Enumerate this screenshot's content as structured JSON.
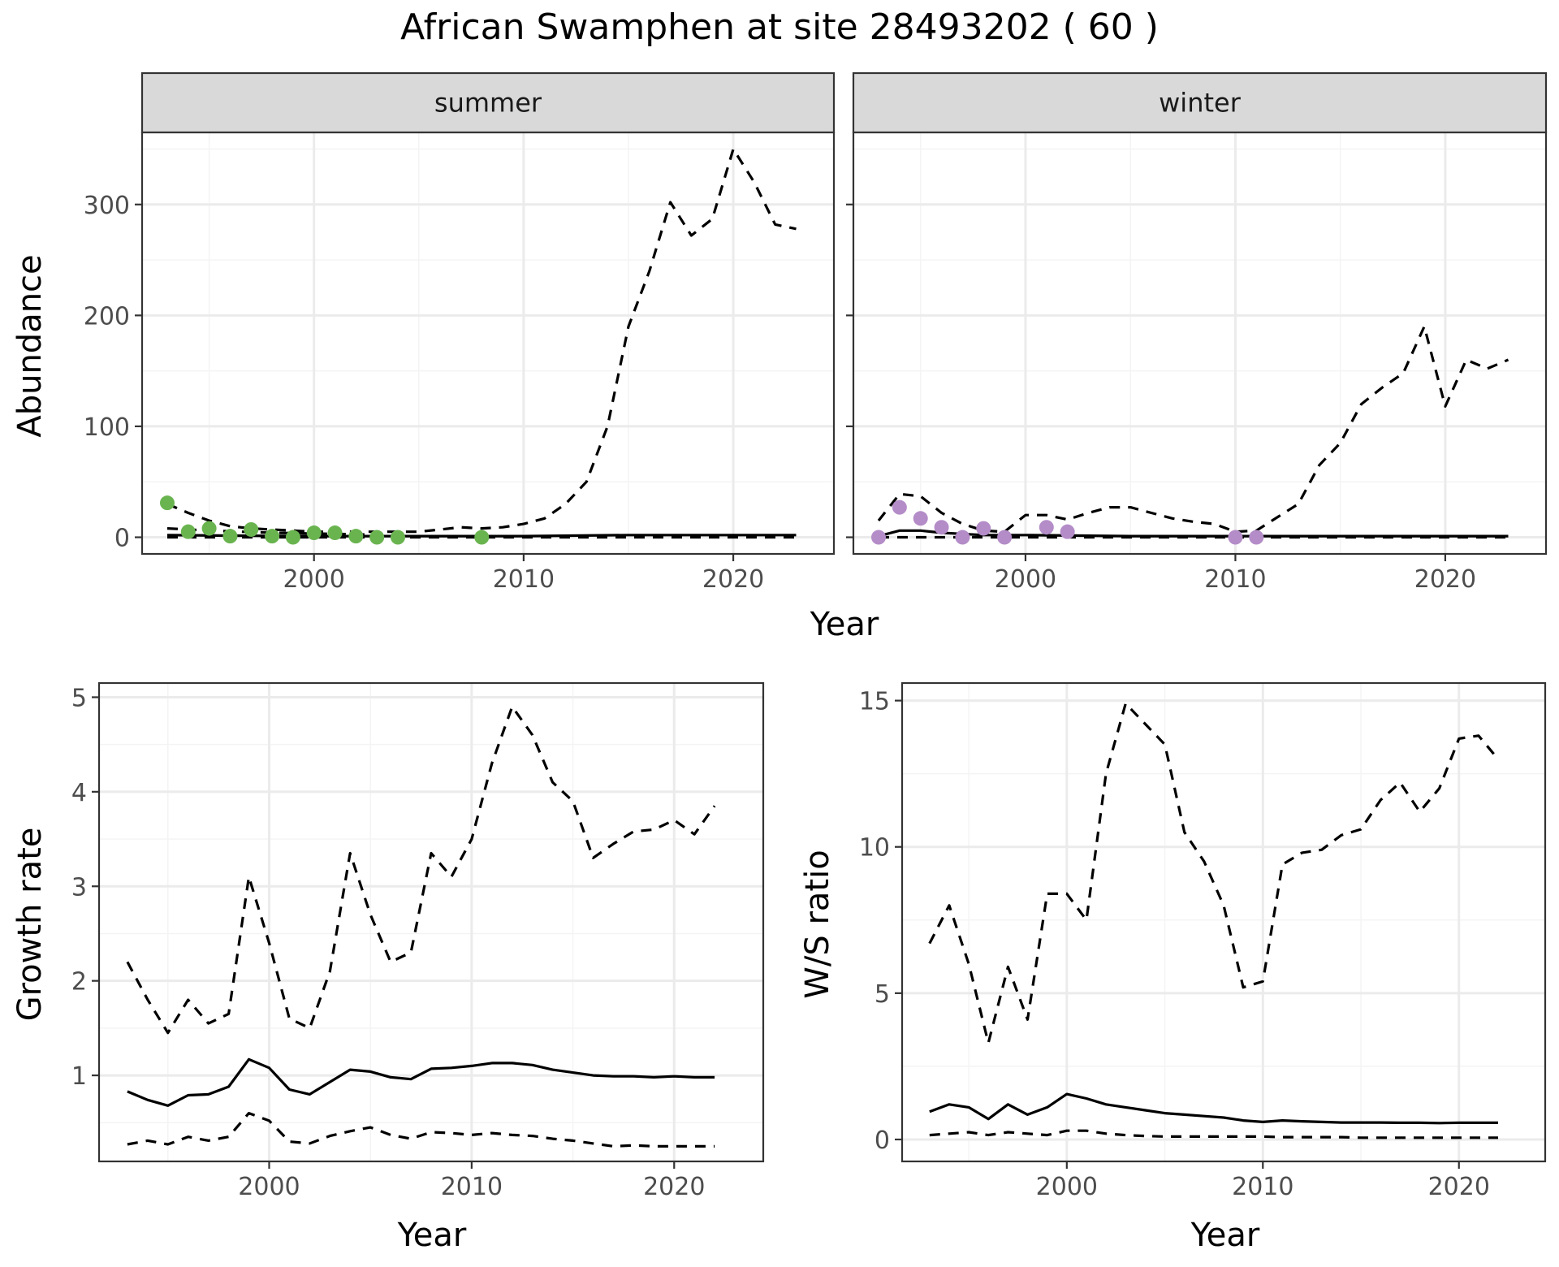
{
  "title": "African Swamphen at site 28493202 ( 60 )",
  "colors": {
    "summer_points": "#6ab450",
    "winter_points": "#b48cc8",
    "strip_fill": "#d9d9d9",
    "grid_major": "#ebebeb",
    "grid_minor": "#f4f4f4",
    "line": "#000000"
  },
  "chart_data": [
    {
      "type": "line",
      "facet": "summer",
      "strip_label": "summer",
      "xlabel": "Year",
      "ylabel": "Abundance",
      "xlim": [
        1991.8,
        2024.8
      ],
      "ylim": [
        -15,
        365
      ],
      "xticks": [
        2000,
        2010,
        2020
      ],
      "yticks": [
        0,
        100,
        200,
        300
      ],
      "grid": true,
      "series": [
        {
          "role": "median",
          "style": "solid",
          "x": [
            1993,
            1996,
            2000,
            2005,
            2010,
            2015,
            2020,
            2023
          ],
          "y": [
            2,
            1.5,
            1,
            1,
            1,
            2,
            2,
            2
          ]
        },
        {
          "role": "upper",
          "style": "dashed",
          "x": [
            1993,
            1994,
            1995,
            1996,
            1997,
            1998,
            1999,
            2000,
            2001,
            2002,
            2003,
            2004,
            2005,
            2006,
            2007,
            2008,
            2009,
            2010,
            2011,
            2012,
            2013,
            2014,
            2015,
            2016,
            2017,
            2018,
            2019,
            2020,
            2021,
            2022,
            2023
          ],
          "y": [
            30,
            22,
            15,
            10,
            8,
            7,
            6,
            5,
            5,
            5,
            5,
            5,
            5,
            7,
            9,
            8,
            9,
            12,
            17,
            30,
            50,
            100,
            190,
            240,
            302,
            272,
            287,
            350,
            320,
            282,
            278
          ]
        },
        {
          "role": "lower",
          "style": "dashed",
          "x": [
            1993,
            1998,
            2003,
            2008,
            2013,
            2018,
            2023
          ],
          "y": [
            0,
            0,
            0,
            0,
            0,
            0,
            0
          ]
        },
        {
          "role": "lower2",
          "style": "dashed",
          "x": [
            1993,
            1995,
            1998,
            2001,
            2004
          ],
          "y": [
            8,
            6,
            4,
            3,
            2
          ]
        },
        {
          "role": "observed",
          "style": "points",
          "x": [
            1993,
            1994,
            1995,
            1996,
            1997,
            1998,
            1999,
            2000,
            2001,
            2002,
            2003,
            2004,
            2008
          ],
          "y": [
            31,
            5,
            8,
            1,
            7,
            1,
            0,
            4,
            4,
            1,
            0,
            0,
            0
          ]
        }
      ]
    },
    {
      "type": "line",
      "facet": "winter",
      "strip_label": "winter",
      "xlabel": "Year",
      "ylabel": "Abundance",
      "xlim": [
        1991.8,
        2024.8
      ],
      "ylim": [
        -15,
        365
      ],
      "xticks": [
        2000,
        2010,
        2020
      ],
      "yticks": [
        0,
        100,
        200,
        300
      ],
      "grid": true,
      "series": [
        {
          "role": "median",
          "style": "solid",
          "x": [
            1993,
            1994,
            1995,
            1996,
            1998,
            2000,
            2005,
            2010,
            2015,
            2020,
            2023
          ],
          "y": [
            1,
            6,
            6,
            4,
            2,
            2,
            1,
            1,
            1,
            1,
            1
          ]
        },
        {
          "role": "upper",
          "style": "dashed",
          "x": [
            1993,
            1994,
            1995,
            1996,
            1997,
            1998,
            1999,
            2000,
            2001,
            2002,
            2003,
            2004,
            2005,
            2006,
            2007,
            2008,
            2009,
            2010,
            2011,
            2012,
            2013,
            2014,
            2015,
            2016,
            2017,
            2018,
            2019,
            2020,
            2021,
            2022,
            2023
          ],
          "y": [
            15,
            39,
            37,
            22,
            12,
            6,
            5,
            20,
            20,
            16,
            22,
            27,
            27,
            22,
            17,
            14,
            12,
            5,
            6,
            18,
            30,
            65,
            85,
            120,
            135,
            148,
            190,
            118,
            160,
            152,
            160
          ]
        },
        {
          "role": "lower",
          "style": "dashed",
          "x": [
            1993,
            1998,
            2003,
            2008,
            2013,
            2018,
            2023
          ],
          "y": [
            0,
            0,
            0,
            0,
            0,
            0,
            0
          ]
        },
        {
          "role": "observed",
          "style": "points",
          "x": [
            1993,
            1994,
            1995,
            1996,
            1997,
            1998,
            1999,
            2001,
            2002,
            2010,
            2011
          ],
          "y": [
            0,
            27,
            17,
            9,
            0,
            8,
            0,
            9,
            5,
            0,
            0
          ]
        }
      ]
    },
    {
      "type": "line",
      "facet": "growth",
      "xlabel": "Year",
      "ylabel": "Growth rate",
      "xlim": [
        1991.6,
        2024.4
      ],
      "ylim": [
        0.09,
        5.15
      ],
      "xticks": [
        2000,
        2010,
        2020
      ],
      "yticks": [
        1,
        2,
        3,
        4,
        5
      ],
      "grid": true,
      "series": [
        {
          "role": "median",
          "style": "solid",
          "x": [
            1993,
            1994,
            1995,
            1996,
            1997,
            1998,
            1999,
            2000,
            2001,
            2002,
            2003,
            2004,
            2005,
            2006,
            2007,
            2008,
            2009,
            2010,
            2011,
            2012,
            2013,
            2014,
            2015,
            2016,
            2017,
            2018,
            2019,
            2020,
            2021,
            2022
          ],
          "y": [
            0.83,
            0.74,
            0.68,
            0.79,
            0.8,
            0.88,
            1.17,
            1.08,
            0.85,
            0.8,
            0.93,
            1.06,
            1.04,
            0.98,
            0.96,
            1.07,
            1.08,
            1.1,
            1.13,
            1.13,
            1.11,
            1.06,
            1.03,
            1.0,
            0.99,
            0.99,
            0.98,
            0.99,
            0.98,
            0.98
          ]
        },
        {
          "role": "upper",
          "style": "dashed",
          "x": [
            1993,
            1994,
            1995,
            1996,
            1997,
            1998,
            1999,
            2000,
            2001,
            2002,
            2003,
            2004,
            2005,
            2006,
            2007,
            2008,
            2009,
            2010,
            2011,
            2012,
            2013,
            2014,
            2015,
            2016,
            2017,
            2018,
            2019,
            2020,
            2021,
            2022
          ],
          "y": [
            2.2,
            1.8,
            1.45,
            1.8,
            1.55,
            1.65,
            3.1,
            2.4,
            1.6,
            1.5,
            2.1,
            3.35,
            2.7,
            2.2,
            2.3,
            3.35,
            3.1,
            3.5,
            4.3,
            4.9,
            4.6,
            4.1,
            3.9,
            3.3,
            3.45,
            3.58,
            3.6,
            3.7,
            3.55,
            3.85
          ]
        },
        {
          "role": "lower",
          "style": "dashed",
          "x": [
            1993,
            1994,
            1995,
            1996,
            1997,
            1998,
            1999,
            2000,
            2001,
            2002,
            2003,
            2004,
            2005,
            2006,
            2007,
            2008,
            2009,
            2010,
            2011,
            2012,
            2013,
            2014,
            2015,
            2016,
            2017,
            2018,
            2019,
            2020,
            2021,
            2022
          ],
          "y": [
            0.27,
            0.31,
            0.27,
            0.35,
            0.31,
            0.35,
            0.6,
            0.52,
            0.3,
            0.28,
            0.36,
            0.41,
            0.45,
            0.37,
            0.33,
            0.4,
            0.39,
            0.37,
            0.39,
            0.37,
            0.36,
            0.33,
            0.31,
            0.28,
            0.25,
            0.26,
            0.25,
            0.25,
            0.25,
            0.25
          ]
        }
      ]
    },
    {
      "type": "line",
      "facet": "ratio",
      "xlabel": "Year",
      "ylabel": "W/S ratio",
      "xlim": [
        1991.6,
        2024.4
      ],
      "ylim": [
        -0.75,
        15.6
      ],
      "xticks": [
        2000,
        2010,
        2020
      ],
      "yticks": [
        0,
        5,
        10,
        15
      ],
      "grid": true,
      "series": [
        {
          "role": "median",
          "style": "solid",
          "x": [
            1993,
            1994,
            1995,
            1996,
            1997,
            1998,
            1999,
            2000,
            2001,
            2002,
            2003,
            2004,
            2005,
            2006,
            2007,
            2008,
            2009,
            2010,
            2011,
            2012,
            2013,
            2014,
            2015,
            2016,
            2017,
            2018,
            2019,
            2020,
            2021,
            2022
          ],
          "y": [
            0.95,
            1.2,
            1.1,
            0.7,
            1.2,
            0.85,
            1.1,
            1.55,
            1.4,
            1.2,
            1.1,
            1.0,
            0.9,
            0.85,
            0.8,
            0.75,
            0.65,
            0.6,
            0.65,
            0.62,
            0.6,
            0.58,
            0.58,
            0.58,
            0.57,
            0.57,
            0.56,
            0.57,
            0.57,
            0.57
          ]
        },
        {
          "role": "upper",
          "style": "dashed",
          "x": [
            1993,
            1994,
            1995,
            1996,
            1997,
            1998,
            1999,
            2000,
            2001,
            2002,
            2003,
            2004,
            2005,
            2006,
            2007,
            2008,
            2009,
            2010,
            2011,
            2012,
            2013,
            2014,
            2015,
            2016,
            2017,
            2018,
            2019,
            2020,
            2021,
            2022
          ],
          "y": [
            6.7,
            8.0,
            6.0,
            3.3,
            5.9,
            4.1,
            8.4,
            8.4,
            7.5,
            12.5,
            14.9,
            14.2,
            13.5,
            10.5,
            9.5,
            8.0,
            5.2,
            5.4,
            9.4,
            9.8,
            9.9,
            10.4,
            10.6,
            11.6,
            12.2,
            11.2,
            12.0,
            13.7,
            13.8,
            13.0
          ]
        },
        {
          "role": "lower",
          "style": "dashed",
          "x": [
            1993,
            1994,
            1995,
            1996,
            1997,
            1998,
            1999,
            2000,
            2001,
            2002,
            2003,
            2004,
            2005,
            2006,
            2007,
            2008,
            2009,
            2010,
            2011,
            2012,
            2013,
            2014,
            2015,
            2016,
            2017,
            2018,
            2019,
            2020,
            2021,
            2022
          ],
          "y": [
            0.15,
            0.2,
            0.25,
            0.15,
            0.25,
            0.2,
            0.15,
            0.3,
            0.3,
            0.2,
            0.15,
            0.12,
            0.1,
            0.1,
            0.1,
            0.1,
            0.1,
            0.1,
            0.08,
            0.08,
            0.08,
            0.08,
            0.06,
            0.06,
            0.06,
            0.06,
            0.06,
            0.06,
            0.06,
            0.06
          ]
        }
      ]
    }
  ]
}
